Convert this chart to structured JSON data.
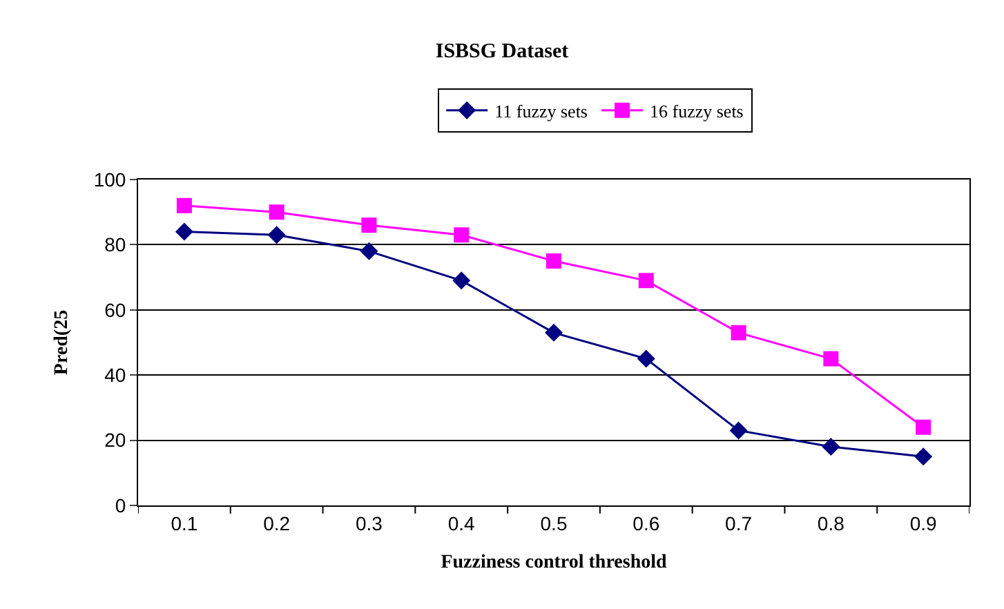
{
  "chart_data": {
    "type": "line",
    "title": "ISBSG Dataset",
    "xlabel": "Fuzziness control threshold",
    "ylabel": "Pred(25",
    "categories": [
      "0.1",
      "0.2",
      "0.3",
      "0.4",
      "0.5",
      "0.6",
      "0.7",
      "0.8",
      "0.9"
    ],
    "series": [
      {
        "name": "11 fuzzy sets",
        "color": "#000080",
        "marker": "diamond",
        "values": [
          84,
          83,
          78,
          69,
          53,
          45,
          23,
          18,
          15
        ]
      },
      {
        "name": "16 fuzzy sets",
        "color": "#ff00ff",
        "marker": "square",
        "values": [
          92,
          90,
          86,
          83,
          75,
          69,
          53,
          45,
          24
        ]
      }
    ],
    "ylim": [
      0,
      100
    ],
    "yticks": [
      0,
      20,
      40,
      60,
      80,
      100
    ],
    "grid": "y",
    "legend": "top",
    "line_style": "solid"
  }
}
